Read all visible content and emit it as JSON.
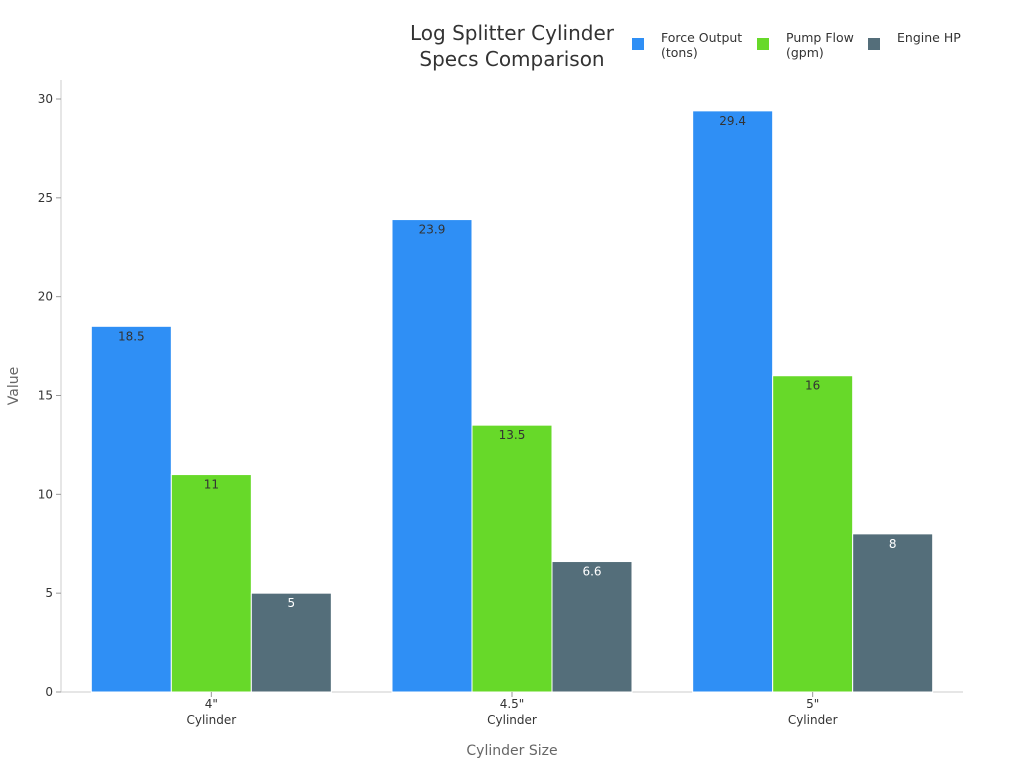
{
  "chart_data": {
    "type": "bar",
    "title_lines": [
      "Log Splitter Cylinder",
      "Specs Comparison"
    ],
    "xlabel": "Cylinder Size",
    "ylabel": "Value",
    "categories": [
      {
        "lines": [
          "4\"",
          "Cylinder"
        ]
      },
      {
        "lines": [
          "4.5\"",
          "Cylinder"
        ]
      },
      {
        "lines": [
          "5\"",
          "Cylinder"
        ]
      }
    ],
    "series": [
      {
        "name": "Force Output (tons)",
        "legend_lines": [
          "Force Output",
          "(tons)"
        ],
        "color": "#2f8ff5",
        "label_color": "#333333",
        "values": [
          18.5,
          23.9,
          29.4
        ]
      },
      {
        "name": "Pump Flow (gpm)",
        "legend_lines": [
          "Pump Flow",
          "(gpm)"
        ],
        "color": "#67d929",
        "label_color": "#333333",
        "values": [
          11,
          13.5,
          16
        ]
      },
      {
        "name": "Engine HP",
        "legend_lines": [
          "Engine HP"
        ],
        "color": "#546e7a",
        "label_color": "#ffffff",
        "values": [
          5,
          6.6,
          8
        ]
      }
    ],
    "ylim": [
      0,
      30
    ],
    "yticks": [
      0,
      5,
      10,
      15,
      20,
      25,
      30
    ],
    "grid": false,
    "legend_position": "top-right"
  }
}
